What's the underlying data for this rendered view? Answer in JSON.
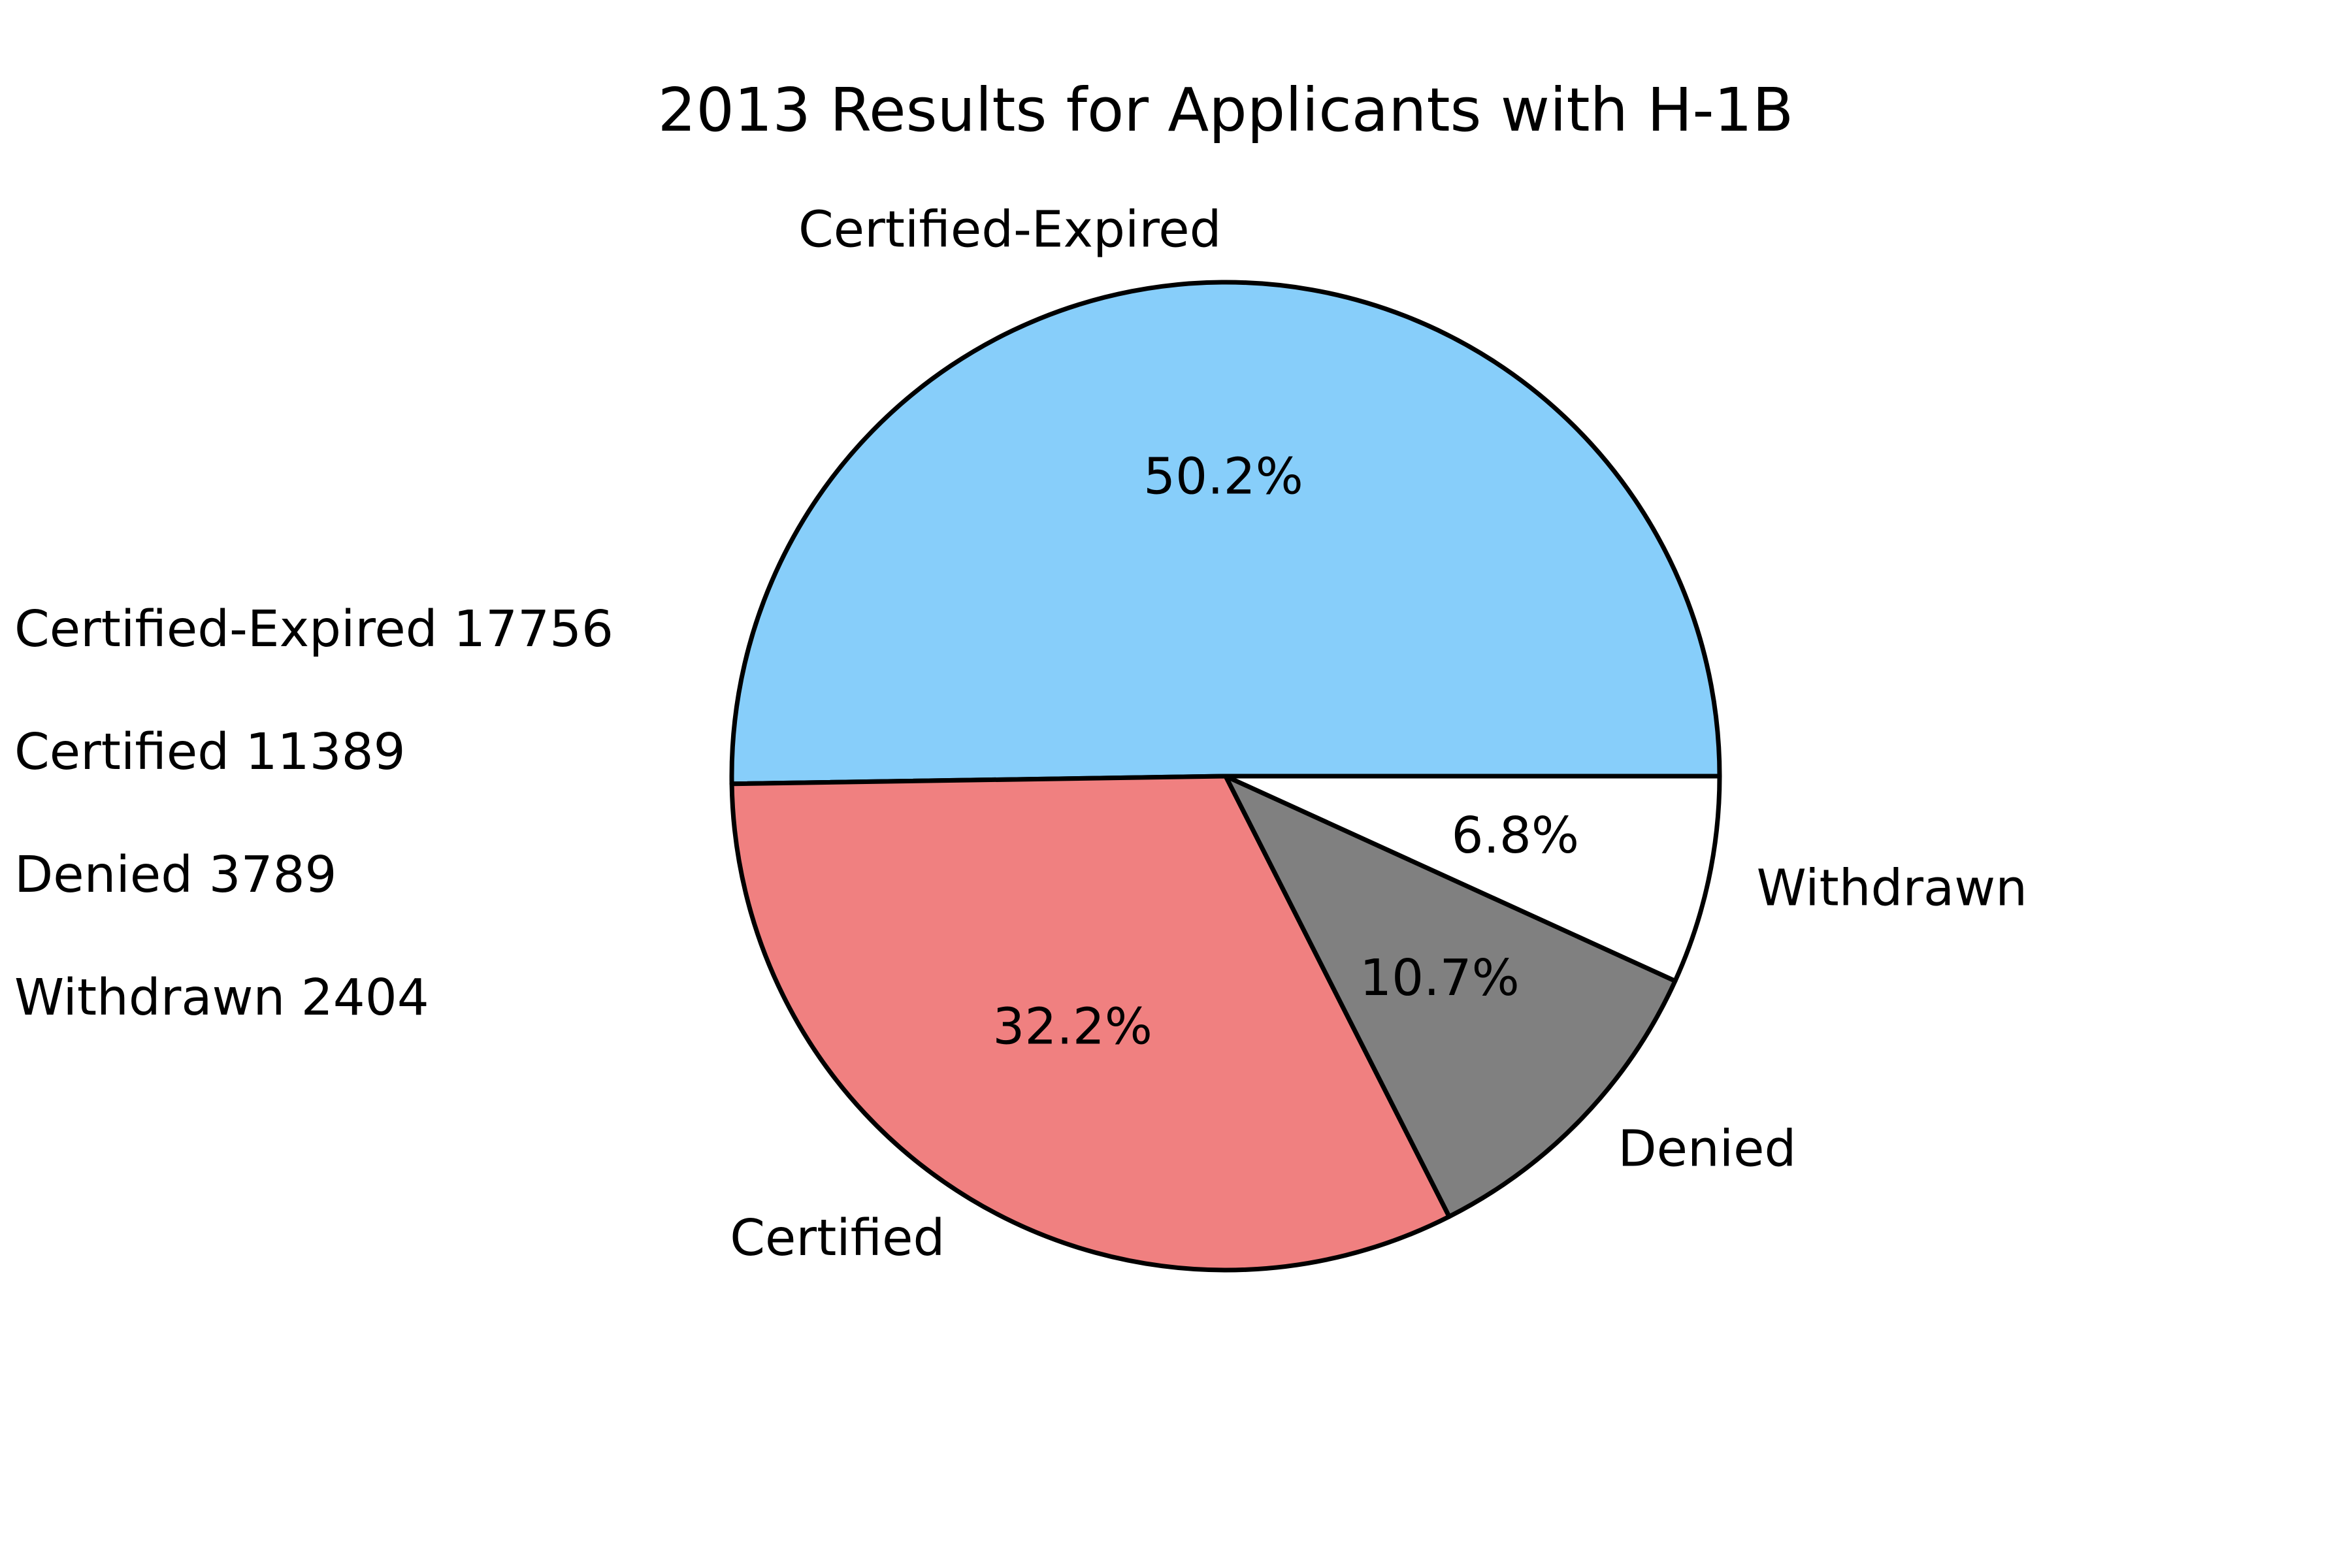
{
  "chart_data": {
    "type": "pie",
    "title": "2013 Results for Applicants with H-1B",
    "slices": [
      {
        "label": "Certified-Expired",
        "value": 17756,
        "pct_label": "50.2%",
        "color": "#87CEFA"
      },
      {
        "label": "Certified",
        "value": 11389,
        "pct_label": "32.2%",
        "color": "#F08080"
      },
      {
        "label": "Denied",
        "value": 3789,
        "pct_label": "10.7%",
        "color": "#808080"
      },
      {
        "label": "Withdrawn",
        "value": 2404,
        "pct_label": "6.8%",
        "color": "#FFFFFF"
      }
    ],
    "side_text": [
      "Certified-Expired 17756",
      "Certified 11389",
      "Denied 3789",
      "Withdrawn 2404"
    ],
    "edge_color": "#000000"
  }
}
